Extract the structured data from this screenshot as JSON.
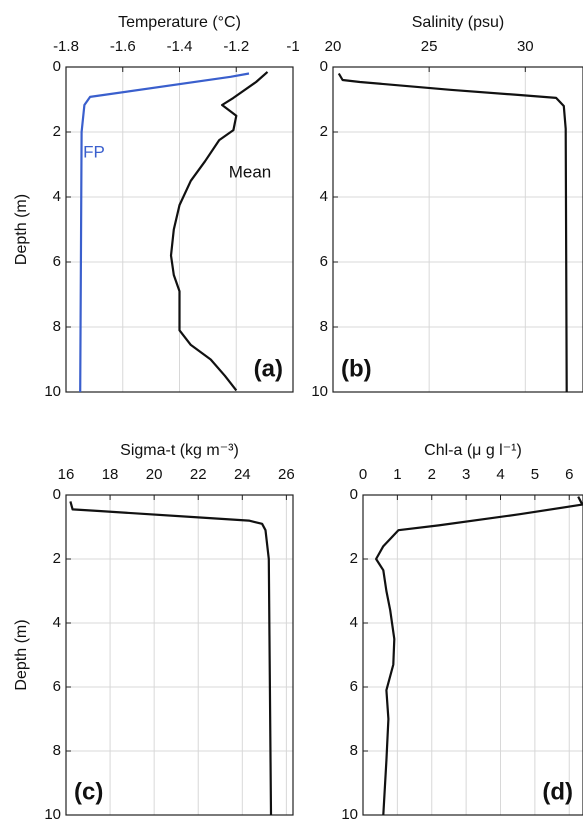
{
  "chart_data": [
    {
      "type": "line",
      "title": "Temperature (°C)",
      "ylabel": "Depth (m)",
      "xlim": [
        -1.8,
        -1
      ],
      "xticks": [
        -1.8,
        -1.6,
        -1.4,
        -1.2,
        -1
      ],
      "ylim": [
        0,
        10
      ],
      "yticks": [
        0,
        2,
        4,
        6,
        8,
        10
      ],
      "y_inverted": true,
      "grid": true,
      "panel_label": "(a)",
      "series": [
        {
          "name": "Mean",
          "color": "#111111",
          "y": [
            0.15,
            0.46,
            0.95,
            1.17,
            1.5,
            1.94,
            2.25,
            2.9,
            3.5,
            4.25,
            5,
            5.8,
            6.4,
            6.9,
            7.3,
            8.1,
            8.55,
            9,
            9.5,
            9.95
          ],
          "values": [
            -1.09,
            -1.13,
            -1.21,
            -1.25,
            -1.2,
            -1.21,
            -1.26,
            -1.31,
            -1.36,
            -1.4,
            -1.42,
            -1.43,
            -1.42,
            -1.4,
            -1.4,
            -1.4,
            -1.36,
            -1.29,
            -1.24,
            -1.2
          ]
        },
        {
          "name": "FP",
          "color": "#3a5fcd",
          "y": [
            0.2,
            0.3,
            0.92,
            1.17,
            2,
            10
          ],
          "values": [
            -1.155,
            -1.22,
            -1.715,
            -1.735,
            -1.745,
            -1.75
          ]
        }
      ]
    },
    {
      "type": "line",
      "title": "Salinity (psu)",
      "xlim": [
        20,
        33
      ],
      "xticks": [
        20,
        25,
        30
      ],
      "ylim": [
        0,
        10
      ],
      "yticks": [
        0,
        2,
        4,
        6,
        8,
        10
      ],
      "y_inverted": true,
      "grid": true,
      "panel_label": "(b)",
      "series": [
        {
          "color": "#111111",
          "y": [
            0.2,
            0.4,
            0.46,
            0.7,
            0.86,
            0.95,
            1.2,
            1.9,
            10
          ],
          "values": [
            20.3,
            20.5,
            21.4,
            26.1,
            29.7,
            31.6,
            32.0,
            32.1,
            32.15
          ]
        }
      ]
    },
    {
      "type": "line",
      "title": "Sigma-t (kg m⁻³)",
      "ylabel": "Depth (m)",
      "xlim": [
        16,
        26.3
      ],
      "xticks": [
        16,
        18,
        20,
        22,
        24,
        26
      ],
      "ylim": [
        0,
        10
      ],
      "yticks": [
        0,
        2,
        4,
        6,
        8,
        10
      ],
      "y_inverted": true,
      "grid": true,
      "panel_label": "(c)",
      "series": [
        {
          "color": "#111111",
          "y": [
            0.2,
            0.45,
            0.5,
            0.7,
            0.8,
            0.9,
            1.1,
            2,
            10
          ],
          "values": [
            16.2,
            16.3,
            17.5,
            22.0,
            24.3,
            24.9,
            25.05,
            25.2,
            25.3
          ]
        }
      ]
    },
    {
      "type": "line",
      "title": "Chl-a (μ g l⁻¹)",
      "xlim": [
        0,
        6.4
      ],
      "xticks": [
        0,
        1,
        2,
        3,
        4,
        5,
        6
      ],
      "ylim": [
        0,
        10
      ],
      "yticks": [
        0,
        2,
        4,
        6,
        8,
        10
      ],
      "y_inverted": true,
      "grid": true,
      "panel_label": "(d)",
      "series": [
        {
          "color": "#111111",
          "y": [
            0.05,
            0.3,
            0.6,
            0.95,
            1.1,
            1.6,
            2.0,
            2.35,
            3,
            3.6,
            4.5,
            5.3,
            6.1,
            7,
            8.3,
            10
          ],
          "values": [
            6.26,
            6.38,
            4.56,
            2.2,
            1.03,
            0.59,
            0.38,
            0.59,
            0.68,
            0.79,
            0.91,
            0.88,
            0.68,
            0.74,
            0.68,
            0.59
          ]
        }
      ]
    }
  ]
}
